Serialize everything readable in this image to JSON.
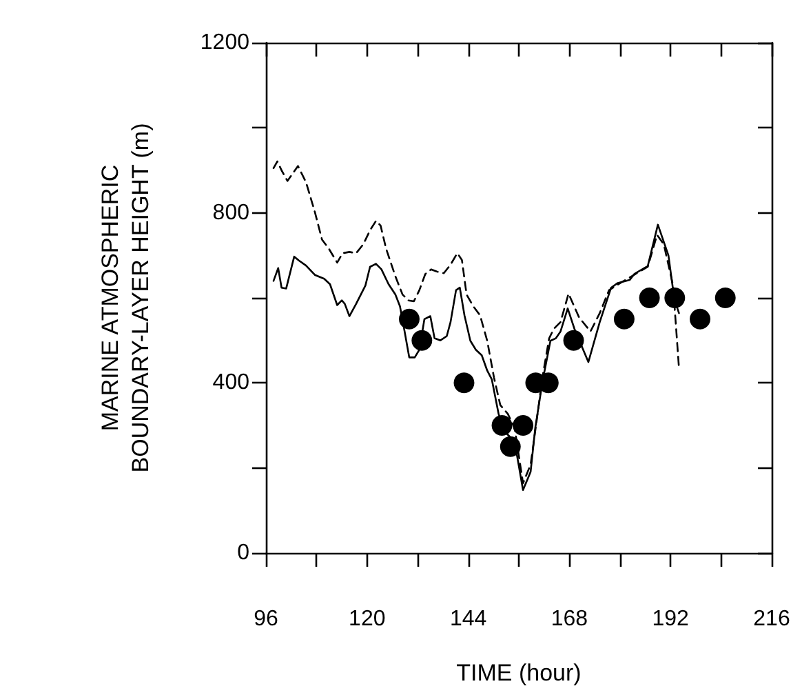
{
  "chart_data": {
    "type": "line",
    "xlabel": "TIME (hour)",
    "ylabel": "MARINE ATMOSPHERIC\nBOUNDARY-LAYER HEIGHT (m)",
    "xlim": [
      96,
      216
    ],
    "xticks": [
      96,
      {
        "value": 108,
        "label": null
      },
      120,
      {
        "value": 132,
        "label": null
      },
      144,
      {
        "value": 156,
        "label": null
      },
      168,
      {
        "value": 180,
        "label": null
      },
      192,
      {
        "value": 204,
        "label": null
      },
      216
    ],
    "ylim": [
      0,
      1200
    ],
    "yticks": [
      0,
      {
        "value": 200,
        "label": null
      },
      400,
      {
        "value": 600,
        "label": null
      },
      800,
      {
        "value": 1000,
        "label": null
      },
      1200
    ],
    "grid": false,
    "series": [
      {
        "color": "#000000",
        "line_style": "solid",
        "marker": "none",
        "x": [
          97.8,
          98.9,
          99.7,
          100.8,
          102.7,
          103.8,
          105.5,
          107.6,
          109.8,
          111.2,
          112.9,
          114,
          114.7,
          115.8,
          117.4,
          119.6,
          120.7,
          122.1,
          123.4,
          125.1,
          126.7,
          127.8,
          128.9,
          130,
          131.3,
          132.4,
          133.6,
          135,
          136,
          137.4,
          138.9,
          139.8,
          141.1,
          142,
          143.1,
          144.5,
          145.8,
          147.2,
          148.5,
          149.6,
          151.2,
          152.9,
          155,
          157,
          158.8,
          159.9,
          161.6,
          163.5,
          164.8,
          165.9,
          167.6,
          169.2,
          172.5,
          175.2,
          177.9,
          179.5,
          182.3,
          183.4,
          186.6,
          189,
          191.5,
          192.9,
          194
        ],
        "values": [
          640,
          670,
          624,
          622,
          697,
          688,
          676,
          654,
          645,
          632,
          583,
          594,
          586,
          557,
          586,
          629,
          673,
          680,
          667,
          632,
          608,
          580,
          521,
          460,
          460,
          478,
          550,
          557,
          505,
          500,
          510,
          543,
          618,
          624,
          559,
          499,
          478,
          465,
          429,
          408,
          327,
          283,
          262,
          148,
          191,
          294,
          402,
          499,
          505,
          521,
          575,
          527,
          449,
          543,
          624,
          635,
          642,
          656,
          675,
          772,
          700,
          597,
          564
        ]
      },
      {
        "color": "#000000",
        "line_style": "dashed",
        "marker": "none",
        "x": [
          97.8,
          98.7,
          99.7,
          101.1,
          103.6,
          105.5,
          107.6,
          109.3,
          110.9,
          112.9,
          114.2,
          115.8,
          117.4,
          119.1,
          120.7,
          122.1,
          123.2,
          124.5,
          126.7,
          128.4,
          129.8,
          131.1,
          132.4,
          133.8,
          135.2,
          136.5,
          138.2,
          139.8,
          141.4,
          142.5,
          143.6,
          145.2,
          146.8,
          148.5,
          150.1,
          151.6,
          153.4,
          155,
          157,
          158.8,
          160.3,
          161.6,
          163.2,
          164.3,
          165.9,
          167.8,
          170.3,
          173,
          175.2,
          177.4,
          180.1,
          182.8,
          186.6,
          188.8,
          190.4,
          192.6,
          194
        ],
        "values": [
          905,
          921,
          900,
          875,
          910,
          872,
          802,
          737,
          716,
          683,
          705,
          708,
          705,
          726,
          759,
          781,
          770,
          716,
          651,
          608,
          594,
          592,
          618,
          656,
          667,
          662,
          658,
          678,
          705,
          689,
          608,
          580,
          559,
          499,
          413,
          348,
          327,
          294,
          164,
          208,
          316,
          413,
          505,
          527,
          543,
          610,
          554,
          521,
          564,
          618,
          635,
          651,
          673,
          748,
          726,
          629,
          435
        ]
      },
      {
        "type": "scatter",
        "color": "#000000",
        "marker": "circle",
        "x": [
          130,
          133,
          143,
          152,
          154,
          157,
          160,
          163,
          169,
          181,
          187,
          193,
          199,
          205
        ],
        "values": [
          550,
          500,
          400,
          300,
          250,
          300,
          400,
          400,
          500,
          550,
          600,
          600,
          550,
          600
        ]
      }
    ]
  }
}
